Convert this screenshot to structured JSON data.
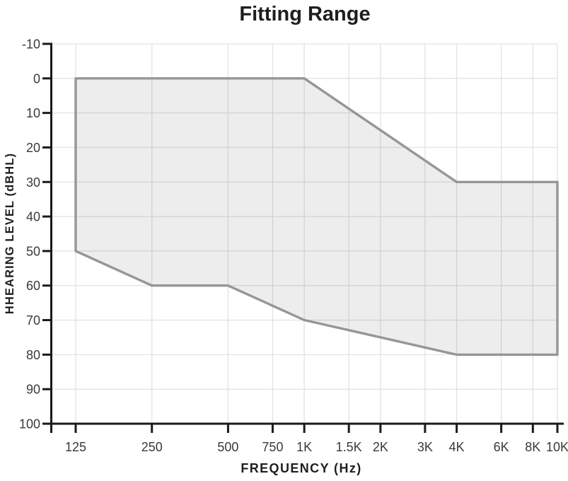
{
  "chart_data": {
    "type": "area",
    "title": "Fitting Range",
    "xlabel": "FREQUENCY (Hz)",
    "ylabel": "HHEARING LEVEL (dBHL)",
    "x_scale": "log",
    "x_min_hz": 125,
    "x_max_hz": 10000,
    "x_ticks": [
      {
        "label": "125",
        "value": 125
      },
      {
        "label": "250",
        "value": 250
      },
      {
        "label": "500",
        "value": 500
      },
      {
        "label": "750",
        "value": 750
      },
      {
        "label": "1K",
        "value": 1000
      },
      {
        "label": "1.5K",
        "value": 1500
      },
      {
        "label": "2K",
        "value": 2000
      },
      {
        "label": "3K",
        "value": 3000
      },
      {
        "label": "4K",
        "value": 4000
      },
      {
        "label": "6K",
        "value": 6000
      },
      {
        "label": "8K",
        "value": 8000
      },
      {
        "label": "10K",
        "value": 10000
      }
    ],
    "y_axis": {
      "min": -10,
      "max": 100,
      "step": 10,
      "inverted": true,
      "tick_labels": [
        "-10",
        "0",
        "10",
        "20",
        "30",
        "40",
        "50",
        "60",
        "70",
        "80",
        "90",
        "100"
      ]
    },
    "grid": true,
    "legend": "none",
    "region": {
      "name": "fitting-range",
      "vertices_freq_db": [
        [
          125,
          0
        ],
        [
          1000,
          0
        ],
        [
          4000,
          30
        ],
        [
          10000,
          30
        ],
        [
          10000,
          80
        ],
        [
          4000,
          80
        ],
        [
          1000,
          70
        ],
        [
          500,
          60
        ],
        [
          250,
          60
        ],
        [
          125,
          50
        ]
      ],
      "upper_boundary_db": [
        [
          125,
          0
        ],
        [
          1000,
          0
        ],
        [
          4000,
          30
        ],
        [
          10000,
          30
        ]
      ],
      "lower_boundary_db": [
        [
          125,
          50
        ],
        [
          250,
          60
        ],
        [
          500,
          60
        ],
        [
          1000,
          70
        ],
        [
          4000,
          80
        ],
        [
          10000,
          80
        ]
      ]
    },
    "colors": {
      "region_fill": "rgba(0,0,0,0.07)",
      "region_stroke": "#969696",
      "grid": "#e2e2e2",
      "axis": "#1a1a1a",
      "tick_text": "#3a3a3a",
      "title_text": "#1e1e1e"
    }
  }
}
